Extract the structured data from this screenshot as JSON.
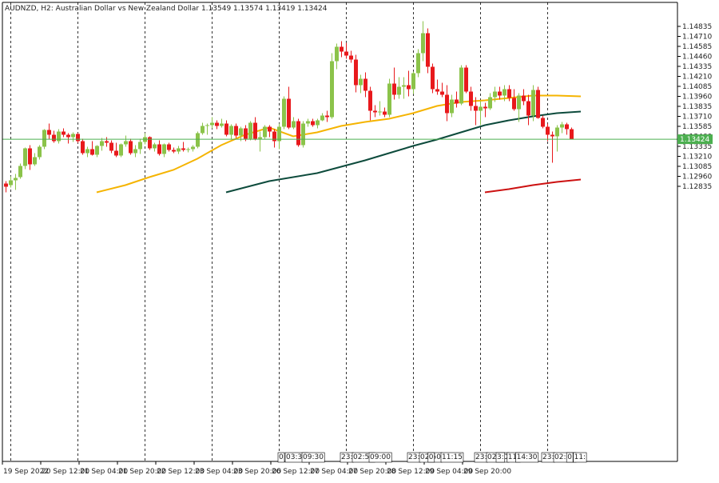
{
  "header": {
    "symbol": "AUDNZD",
    "timeframe": "H2",
    "description": "Australian Dollar vs New Zealand Dollar",
    "open": "1.13549",
    "high": "1.13574",
    "low": "1.13419",
    "close": "1.13424"
  },
  "colors": {
    "bull": "#8bc34a",
    "bear": "#e8191c",
    "ma_fast": "#f5b400",
    "ma_slow": "#0d4b3c",
    "ma_long": "#cc1111",
    "price_line": "#4caf50",
    "grid": "#333333",
    "axis": "#000000"
  },
  "chart_data": {
    "type": "candlestick",
    "ylim": [
      1.1276,
      1.1491
    ],
    "y_ticks": [
      "1.14835",
      "1.14710",
      "1.14585",
      "1.14460",
      "1.14335",
      "1.14210",
      "1.14085",
      "1.13960",
      "1.13835",
      "1.13710",
      "1.13585",
      "1.13460",
      "1.13335",
      "1.13210",
      "1.13085",
      "1.12960",
      "1.12835"
    ],
    "current_price": "1.13424",
    "x_labels": [
      "19 Sep 2022",
      "20 Sep 12:00",
      "21 Sep 04:00",
      "21 Sep 20:00",
      "22 Sep 12:00",
      "23 Sep 04:00",
      "23 Sep 20:00",
      "26 Sep 12:00",
      "27 Sep 04:00",
      "27 Sep 20:00",
      "28 Sep 12:00",
      "29 Sep 04:00",
      "29 Sep 20:00"
    ],
    "overlap_labels": [
      {
        "idx": 57,
        "text": "0"
      },
      {
        "idx": 58.5,
        "text": "03:30"
      },
      {
        "idx": 62,
        "text": "09:30"
      },
      {
        "idx": 70,
        "text": "23:"
      },
      {
        "idx": 72.5,
        "text": "02:50"
      },
      {
        "idx": 76,
        "text": "09:00"
      },
      {
        "idx": 84,
        "text": "23:"
      },
      {
        "idx": 86.5,
        "text": "02:50"
      },
      {
        "idx": 88.3,
        "text": "0"
      },
      {
        "idx": 91,
        "text": "11:15"
      },
      {
        "idx": 98,
        "text": "23:"
      },
      {
        "idx": 100.5,
        "text": "02:50"
      },
      {
        "idx": 102.5,
        "text": "3:"
      },
      {
        "idx": 104.8,
        "text": "11:"
      },
      {
        "idx": 106.6,
        "text": "14:30"
      },
      {
        "idx": 112,
        "text": "23:"
      },
      {
        "idx": 114.5,
        "text": "02:50"
      },
      {
        "idx": 117.2,
        "text": "0"
      },
      {
        "idx": 118.6,
        "text": "11:"
      }
    ],
    "separators": [
      1,
      15,
      29,
      43,
      57,
      71,
      85,
      99,
      113
    ],
    "candles": [
      [
        1.1287,
        1.129,
        1.1276,
        1.1283
      ],
      [
        1.1285,
        1.1296,
        1.1282,
        1.1291
      ],
      [
        1.1291,
        1.1299,
        1.1279,
        1.1294
      ],
      [
        1.1295,
        1.1312,
        1.1293,
        1.1309
      ],
      [
        1.1309,
        1.1332,
        1.1305,
        1.1331
      ],
      [
        1.1331,
        1.1335,
        1.1304,
        1.1311
      ],
      [
        1.1311,
        1.1325,
        1.1309,
        1.132
      ],
      [
        1.132,
        1.1335,
        1.1317,
        1.1333
      ],
      [
        1.1333,
        1.1355,
        1.133,
        1.1354
      ],
      [
        1.1354,
        1.1362,
        1.1342,
        1.1348
      ],
      [
        1.1348,
        1.1353,
        1.1338,
        1.134
      ],
      [
        1.134,
        1.1355,
        1.1337,
        1.1352
      ],
      [
        1.1352,
        1.1356,
        1.1345,
        1.1348
      ],
      [
        1.1348,
        1.135,
        1.1337,
        1.1345
      ],
      [
        1.1345,
        1.1351,
        1.1339,
        1.1349
      ],
      [
        1.1349,
        1.135,
        1.1338,
        1.134
      ],
      [
        1.134,
        1.1343,
        1.1323,
        1.1325
      ],
      [
        1.1325,
        1.1333,
        1.132,
        1.133
      ],
      [
        1.133,
        1.134,
        1.1322,
        1.1323
      ],
      [
        1.1323,
        1.1335,
        1.132,
        1.1334
      ],
      [
        1.1334,
        1.1344,
        1.1328,
        1.134
      ],
      [
        1.134,
        1.1345,
        1.1333,
        1.1338
      ],
      [
        1.1338,
        1.1341,
        1.1325,
        1.1328
      ],
      [
        1.1328,
        1.1338,
        1.132,
        1.1322
      ],
      [
        1.1322,
        1.1337,
        1.132,
        1.1336
      ],
      [
        1.1336,
        1.1347,
        1.1333,
        1.134
      ],
      [
        1.134,
        1.1343,
        1.1323,
        1.1325
      ],
      [
        1.1325,
        1.1335,
        1.132,
        1.133
      ],
      [
        1.133,
        1.1343,
        1.1324,
        1.1339
      ],
      [
        1.1339,
        1.135,
        1.1336,
        1.1345
      ],
      [
        1.1345,
        1.1346,
        1.1329,
        1.1331
      ],
      [
        1.1331,
        1.1338,
        1.1327,
        1.1336
      ],
      [
        1.1336,
        1.1341,
        1.1322,
        1.1324
      ],
      [
        1.1324,
        1.1337,
        1.132,
        1.1336
      ],
      [
        1.1336,
        1.1338,
        1.1327,
        1.1329
      ],
      [
        1.1329,
        1.1332,
        1.1325,
        1.1327
      ],
      [
        1.1327,
        1.1334,
        1.1324,
        1.1331
      ],
      [
        1.1331,
        1.1339,
        1.1327,
        1.1329
      ],
      [
        1.1329,
        1.1332,
        1.1326,
        1.133
      ],
      [
        1.133,
        1.1335,
        1.1327,
        1.1333
      ],
      [
        1.1333,
        1.1352,
        1.1331,
        1.135
      ],
      [
        1.135,
        1.1363,
        1.1348,
        1.1359
      ],
      [
        1.1359,
        1.1362,
        1.1348,
        1.136
      ],
      [
        1.136,
        1.137,
        1.1356,
        1.1363
      ],
      [
        1.1363,
        1.1366,
        1.1355,
        1.1359
      ],
      [
        1.1359,
        1.1368,
        1.1357,
        1.1362
      ],
      [
        1.1362,
        1.1366,
        1.1346,
        1.1348
      ],
      [
        1.1348,
        1.1361,
        1.1342,
        1.1359
      ],
      [
        1.1359,
        1.1362,
        1.1344,
        1.1347
      ],
      [
        1.1347,
        1.1358,
        1.134,
        1.1356
      ],
      [
        1.1356,
        1.136,
        1.134,
        1.1343
      ],
      [
        1.1343,
        1.1365,
        1.1341,
        1.1363
      ],
      [
        1.1363,
        1.137,
        1.1341,
        1.1343
      ],
      [
        1.1343,
        1.1352,
        1.1327,
        1.1345
      ],
      [
        1.1345,
        1.136,
        1.1343,
        1.1358
      ],
      [
        1.1358,
        1.136,
        1.1345,
        1.1352
      ],
      [
        1.1352,
        1.1355,
        1.1332,
        1.134
      ],
      [
        1.134,
        1.1362,
        1.133,
        1.1358
      ],
      [
        1.1358,
        1.1396,
        1.1355,
        1.1393
      ],
      [
        1.1393,
        1.1408,
        1.1355,
        1.1357
      ],
      [
        1.1357,
        1.137,
        1.1355,
        1.1365
      ],
      [
        1.1365,
        1.1368,
        1.1333,
        1.1335
      ],
      [
        1.1335,
        1.1365,
        1.1332,
        1.1362
      ],
      [
        1.1362,
        1.1368,
        1.1358,
        1.1365
      ],
      [
        1.1365,
        1.1368,
        1.1358,
        1.136
      ],
      [
        1.136,
        1.1368,
        1.1356,
        1.1366
      ],
      [
        1.1366,
        1.1375,
        1.1365,
        1.1372
      ],
      [
        1.1372,
        1.1378,
        1.1364,
        1.137
      ],
      [
        1.137,
        1.145,
        1.1368,
        1.144
      ],
      [
        1.144,
        1.1462,
        1.143,
        1.1458
      ],
      [
        1.1458,
        1.1465,
        1.1445,
        1.1452
      ],
      [
        1.1452,
        1.1463,
        1.1443,
        1.1447
      ],
      [
        1.1447,
        1.1453,
        1.1438,
        1.1442
      ],
      [
        1.1442,
        1.1448,
        1.1401,
        1.141
      ],
      [
        1.141,
        1.1423,
        1.14,
        1.1418
      ],
      [
        1.1418,
        1.1426,
        1.1395,
        1.1403
      ],
      [
        1.1403,
        1.1408,
        1.1366,
        1.1378
      ],
      [
        1.1378,
        1.1385,
        1.137,
        1.1376
      ],
      [
        1.1376,
        1.139,
        1.1372,
        1.1377
      ],
      [
        1.1377,
        1.1382,
        1.137,
        1.1373
      ],
      [
        1.1373,
        1.1418,
        1.137,
        1.1412
      ],
      [
        1.1412,
        1.1432,
        1.1392,
        1.1398
      ],
      [
        1.1398,
        1.142,
        1.1393,
        1.1408
      ],
      [
        1.1408,
        1.142,
        1.1393,
        1.141
      ],
      [
        1.141,
        1.1428,
        1.1396,
        1.1405
      ],
      [
        1.1405,
        1.1427,
        1.1399,
        1.1425
      ],
      [
        1.1425,
        1.1455,
        1.142,
        1.145
      ],
      [
        1.145,
        1.149,
        1.144,
        1.1475
      ],
      [
        1.1475,
        1.1481,
        1.1425,
        1.1433
      ],
      [
        1.1433,
        1.1437,
        1.14,
        1.1405
      ],
      [
        1.1405,
        1.1417,
        1.1398,
        1.1402
      ],
      [
        1.1402,
        1.1413,
        1.1395,
        1.1398
      ],
      [
        1.1398,
        1.141,
        1.1365,
        1.1375
      ],
      [
        1.1375,
        1.1398,
        1.137,
        1.1392
      ],
      [
        1.1392,
        1.1402,
        1.1382,
        1.1387
      ],
      [
        1.1387,
        1.1435,
        1.1385,
        1.1432
      ],
      [
        1.1432,
        1.1435,
        1.14,
        1.1402
      ],
      [
        1.1402,
        1.1408,
        1.1378,
        1.1384
      ],
      [
        1.1384,
        1.1395,
        1.136,
        1.1378
      ],
      [
        1.1378,
        1.139,
        1.136,
        1.1383
      ],
      [
        1.1383,
        1.1388,
        1.137,
        1.1381
      ],
      [
        1.1381,
        1.14,
        1.1379,
        1.1395
      ],
      [
        1.1395,
        1.1408,
        1.1389,
        1.1402
      ],
      [
        1.1402,
        1.1408,
        1.1392,
        1.1397
      ],
      [
        1.1397,
        1.141,
        1.139,
        1.1405
      ],
      [
        1.1405,
        1.141,
        1.139,
        1.1394
      ],
      [
        1.1394,
        1.1405,
        1.1378,
        1.138
      ],
      [
        1.138,
        1.14,
        1.1364,
        1.1397
      ],
      [
        1.1397,
        1.1405,
        1.1385,
        1.139
      ],
      [
        1.139,
        1.1398,
        1.136,
        1.1372
      ],
      [
        1.1372,
        1.141,
        1.1365,
        1.1404
      ],
      [
        1.1404,
        1.1408,
        1.1368,
        1.1369
      ],
      [
        1.1369,
        1.1372,
        1.1356,
        1.1358
      ],
      [
        1.1358,
        1.1362,
        1.134,
        1.1348
      ],
      [
        1.1348,
        1.1352,
        1.1313,
        1.1346
      ],
      [
        1.1346,
        1.136,
        1.1327,
        1.1357
      ],
      [
        1.1357,
        1.1364,
        1.135,
        1.1361
      ],
      [
        1.1361,
        1.1363,
        1.1348,
        1.1355
      ],
      [
        1.1355,
        1.1357,
        1.1342,
        1.1342
      ]
    ],
    "ma_fast": [
      [
        19,
        1.1276
      ],
      [
        25,
        1.1285
      ],
      [
        30,
        1.1295
      ],
      [
        35,
        1.1304
      ],
      [
        40,
        1.1318
      ],
      [
        45,
        1.1335
      ],
      [
        50,
        1.1348
      ],
      [
        55,
        1.1357
      ],
      [
        60,
        1.1346
      ],
      [
        65,
        1.1351
      ],
      [
        70,
        1.1359
      ],
      [
        75,
        1.1364
      ],
      [
        80,
        1.1368
      ],
      [
        85,
        1.1375
      ],
      [
        90,
        1.1384
      ],
      [
        95,
        1.1389
      ],
      [
        100,
        1.1391
      ],
      [
        105,
        1.1394
      ],
      [
        110,
        1.1397
      ],
      [
        115,
        1.1397
      ],
      [
        120,
        1.1396
      ]
    ],
    "ma_slow": [
      [
        46,
        1.1276
      ],
      [
        55,
        1.129
      ],
      [
        65,
        1.13
      ],
      [
        70,
        1.1308
      ],
      [
        75,
        1.1316
      ],
      [
        80,
        1.1325
      ],
      [
        85,
        1.1334
      ],
      [
        90,
        1.1342
      ],
      [
        95,
        1.1351
      ],
      [
        100,
        1.136
      ],
      [
        105,
        1.1366
      ],
      [
        110,
        1.1371
      ],
      [
        115,
        1.1375
      ],
      [
        120,
        1.1377
      ]
    ],
    "ma_long": [
      [
        100,
        1.1276
      ],
      [
        105,
        1.128
      ],
      [
        110,
        1.1285
      ],
      [
        115,
        1.1289
      ],
      [
        120,
        1.1292
      ]
    ]
  }
}
